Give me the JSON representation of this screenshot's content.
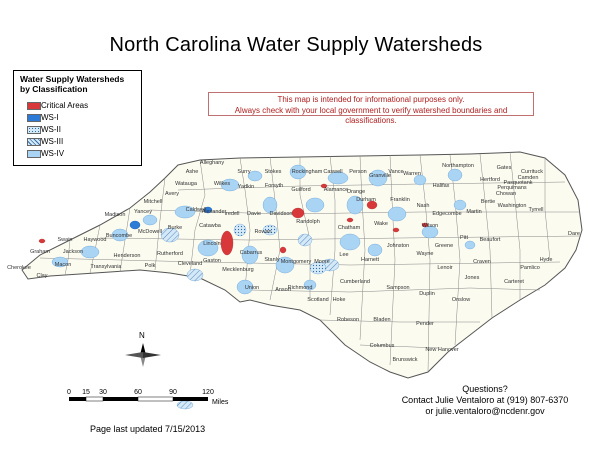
{
  "title": "North Carolina Water Supply Watersheds",
  "legend": {
    "title_line1": "Water Supply Watersheds",
    "title_line2": "by Classification",
    "items": [
      {
        "label": "Critical Areas",
        "color": "#d9383a",
        "pattern": "solid"
      },
      {
        "label": "WS-I",
        "color": "#2c7bd6",
        "pattern": "solid"
      },
      {
        "label": "WS-II",
        "color": "#9ec9ee",
        "pattern": "dots"
      },
      {
        "label": "WS-III",
        "color": "#9ec9ee",
        "pattern": "hatch"
      },
      {
        "label": "WS-IV",
        "color": "#a9d4f4",
        "pattern": "solid"
      }
    ]
  },
  "notice": {
    "line1": "This map is intended for informational purposes only.",
    "line2": "Always check with your local government to verify watershed boundaries and classifications."
  },
  "north_arrow": {
    "label": "N"
  },
  "scale": {
    "ticks": [
      "0",
      "15",
      "30",
      "60",
      "90",
      "120"
    ],
    "unit": "Miles"
  },
  "footer": {
    "updated": "Page last updated 7/15/2013"
  },
  "contact": {
    "line1": "Questions?",
    "line2": "Contact Julie Ventaloro at (919) 807-6370",
    "line3": "or julie.ventaloro@ncdenr.gov"
  },
  "counties": [
    "Alleghany",
    "Ashe",
    "Surry",
    "Stokes",
    "Rockingham",
    "Caswell",
    "Person",
    "Granville",
    "Vance",
    "Warren",
    "Northampton",
    "Gates",
    "Currituck",
    "Camden",
    "Pasquotank",
    "Perquimans",
    "Chowan",
    "Hertford",
    "Bertie",
    "Halifax",
    "Watauga",
    "Wilkes",
    "Yadkin",
    "Forsyth",
    "Guilford",
    "Alamance",
    "Orange",
    "Durham",
    "Franklin",
    "Nash",
    "Edgecombe",
    "Martin",
    "Washington",
    "Tyrrell",
    "Dare",
    "Avery",
    "Mitchell",
    "Yancey",
    "Madison",
    "Caldwell",
    "Alexander",
    "Iredell",
    "Davie",
    "Davidson",
    "Randolph",
    "Chatham",
    "Wake",
    "Johnston",
    "Wilson",
    "Pitt",
    "Beaufort",
    "Hyde",
    "Pamlico",
    "Buncombe",
    "McDowell",
    "Burke",
    "Catawba",
    "Rowan",
    "Haywood",
    "Swain",
    "Graham",
    "Cherokee",
    "Clay",
    "Macon",
    "Jackson",
    "Transylvania",
    "Henderson",
    "Polk",
    "Rutherford",
    "Cleveland",
    "Gaston",
    "Lincoln",
    "Mecklenburg",
    "Cabarrus",
    "Stanly",
    "Montgomery",
    "Moore",
    "Lee",
    "Harnett",
    "Wayne",
    "Greene",
    "Lenoir",
    "Craven",
    "Carteret",
    "Jones",
    "Onslow",
    "Duplin",
    "Sampson",
    "Cumberland",
    "Hoke",
    "Scotland",
    "Richmond",
    "Anson",
    "Union",
    "Robeson",
    "Bladen",
    "Pender",
    "Columbus",
    "Brunswick",
    "New Hanover"
  ]
}
